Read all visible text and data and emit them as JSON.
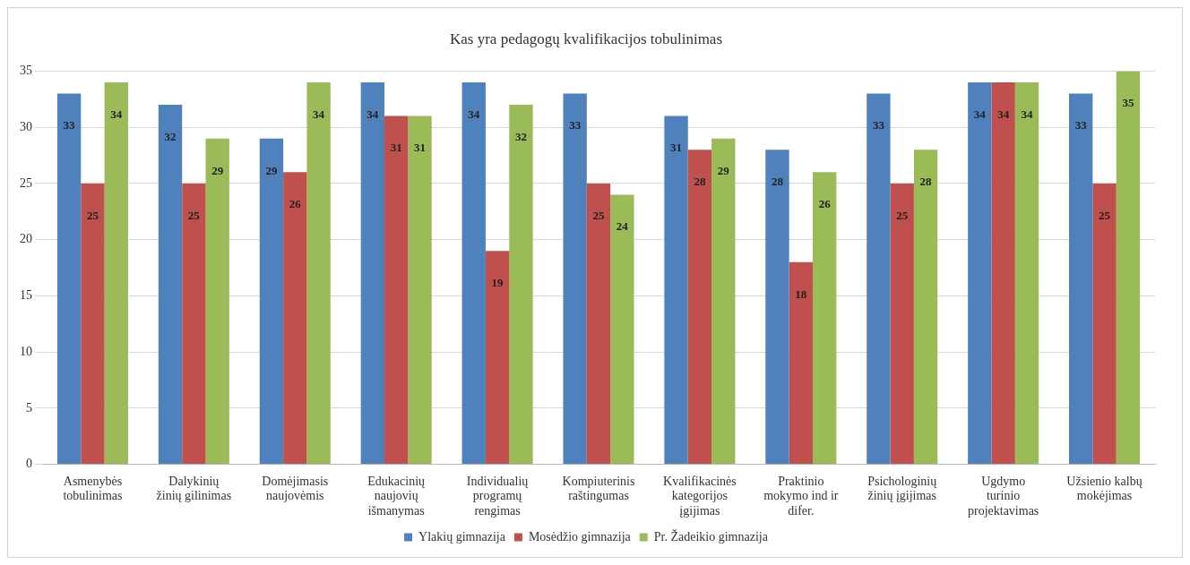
{
  "chart_data": {
    "type": "bar",
    "title": "Kas yra pedagogų kvalifikacijos tobulinimas",
    "categories": [
      "Asmenybės\ntobulinimas",
      "Dalykinių\nžinių gilinimas",
      "Domėjimasis\nnaujovėmis",
      "Edukacinių\nnaujovių\nišmanymas",
      "Individualių\nprogramų\nrengimas",
      "Kompiuterinis\nraštingumas",
      "Kvalifikacinės\nkategorijos\nįgijimas",
      "Praktinio\nmokymo ind ir\ndifer.",
      "Psichologinių\nžinių įgijimas",
      "Ugdymo\nturinio\nprojektavimas",
      "Užsienio kalbų\nmokėjimas"
    ],
    "series": [
      {
        "name": "Ylakių gimnazija",
        "color": "#4f81bd",
        "values": [
          33,
          32,
          29,
          34,
          34,
          33,
          31,
          28,
          33,
          34,
          33
        ]
      },
      {
        "name": "Mosėdžio gimnazija",
        "color": "#c0504d",
        "values": [
          25,
          25,
          26,
          31,
          19,
          25,
          28,
          18,
          25,
          34,
          25
        ]
      },
      {
        "name": "Pr. Žadeikio gimnazija",
        "color": "#9bbb59",
        "values": [
          34,
          29,
          34,
          31,
          32,
          24,
          29,
          26,
          28,
          34,
          35
        ]
      }
    ],
    "ylim": [
      0,
      35
    ],
    "yticks": [
      0,
      5,
      10,
      15,
      20,
      25,
      30,
      35
    ],
    "grid": "y",
    "legend": "bottom",
    "data_labels": true
  }
}
